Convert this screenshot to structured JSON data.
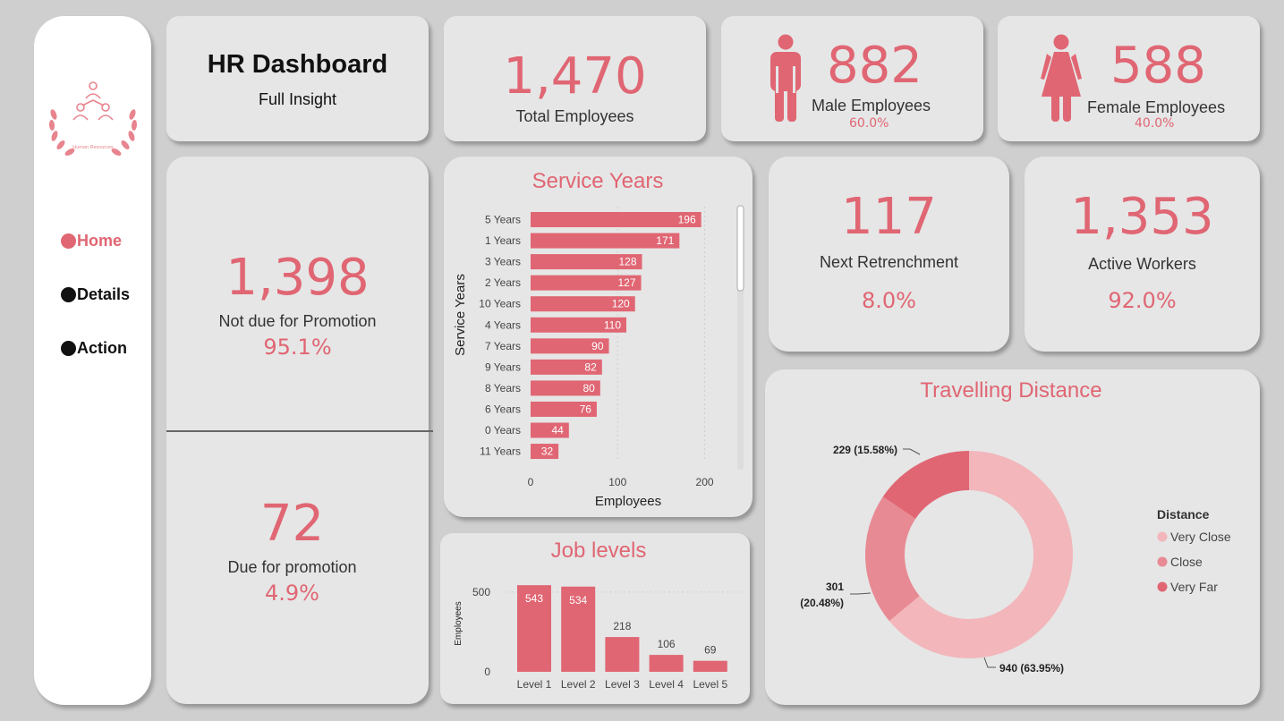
{
  "sidebar": {
    "logo_text": "Human Resources",
    "nav": [
      {
        "label": "Home",
        "active": true
      },
      {
        "label": "Details",
        "active": false
      },
      {
        "label": "Action",
        "active": false
      }
    ]
  },
  "header": {
    "title": "HR Dashboard",
    "subtitle": "Full Insight"
  },
  "kpis": {
    "total": {
      "value": "1,470",
      "label": "Total Employees"
    },
    "male": {
      "value": "882",
      "label": "Male Employees",
      "pct": "60.0%"
    },
    "female": {
      "value": "588",
      "label": "Female Employees",
      "pct": "40.0%"
    },
    "retrench": {
      "value": "117",
      "label": "Next Retrenchment",
      "pct": "8.0%"
    },
    "active": {
      "value": "1,353",
      "label": "Active Workers",
      "pct": "92.0%"
    },
    "not_due": {
      "value": "1,398",
      "label": "Not due for Promotion",
      "pct": "95.1%"
    },
    "due": {
      "value": "72",
      "label": "Due for promotion",
      "pct": "4.9%"
    }
  },
  "colors": {
    "accent": "#e06673",
    "very_close": "#f2b6bb",
    "close": "#e88a93",
    "very_far": "#e06673"
  },
  "chart_data": [
    {
      "type": "bar",
      "orientation": "horizontal",
      "title": "Service Years",
      "xlabel": "Employees",
      "ylabel": "Service Years",
      "categories": [
        "5 Years",
        "1 Years",
        "3 Years",
        "2 Years",
        "10 Years",
        "4 Years",
        "7 Years",
        "9 Years",
        "8 Years",
        "6 Years",
        "0 Years",
        "11 Years"
      ],
      "values": [
        196,
        171,
        128,
        127,
        120,
        110,
        90,
        82,
        80,
        76,
        44,
        32
      ],
      "xticks": [
        "0",
        "100",
        "200"
      ],
      "xlim": [
        0,
        220
      ]
    },
    {
      "type": "bar",
      "title": "Job levels",
      "xlabel": "",
      "ylabel": "Employees",
      "categories": [
        "Level 1",
        "Level 2",
        "Level 3",
        "Level 4",
        "Level 5"
      ],
      "values": [
        543,
        534,
        218,
        106,
        69
      ],
      "yticks": [
        "0",
        "500"
      ],
      "ylim": [
        0,
        600
      ]
    },
    {
      "type": "pie",
      "title": "Travelling Distance",
      "legend_title": "Distance",
      "legend_position": "right",
      "slices": [
        {
          "name": "Very Close",
          "value": 940,
          "label": "940 (63.95%)"
        },
        {
          "name": "Close",
          "value": 301,
          "label_line1": "301",
          "label_line2": "(20.48%)"
        },
        {
          "name": "Very Far",
          "value": 229,
          "label": "229 (15.58%)"
        }
      ]
    }
  ]
}
